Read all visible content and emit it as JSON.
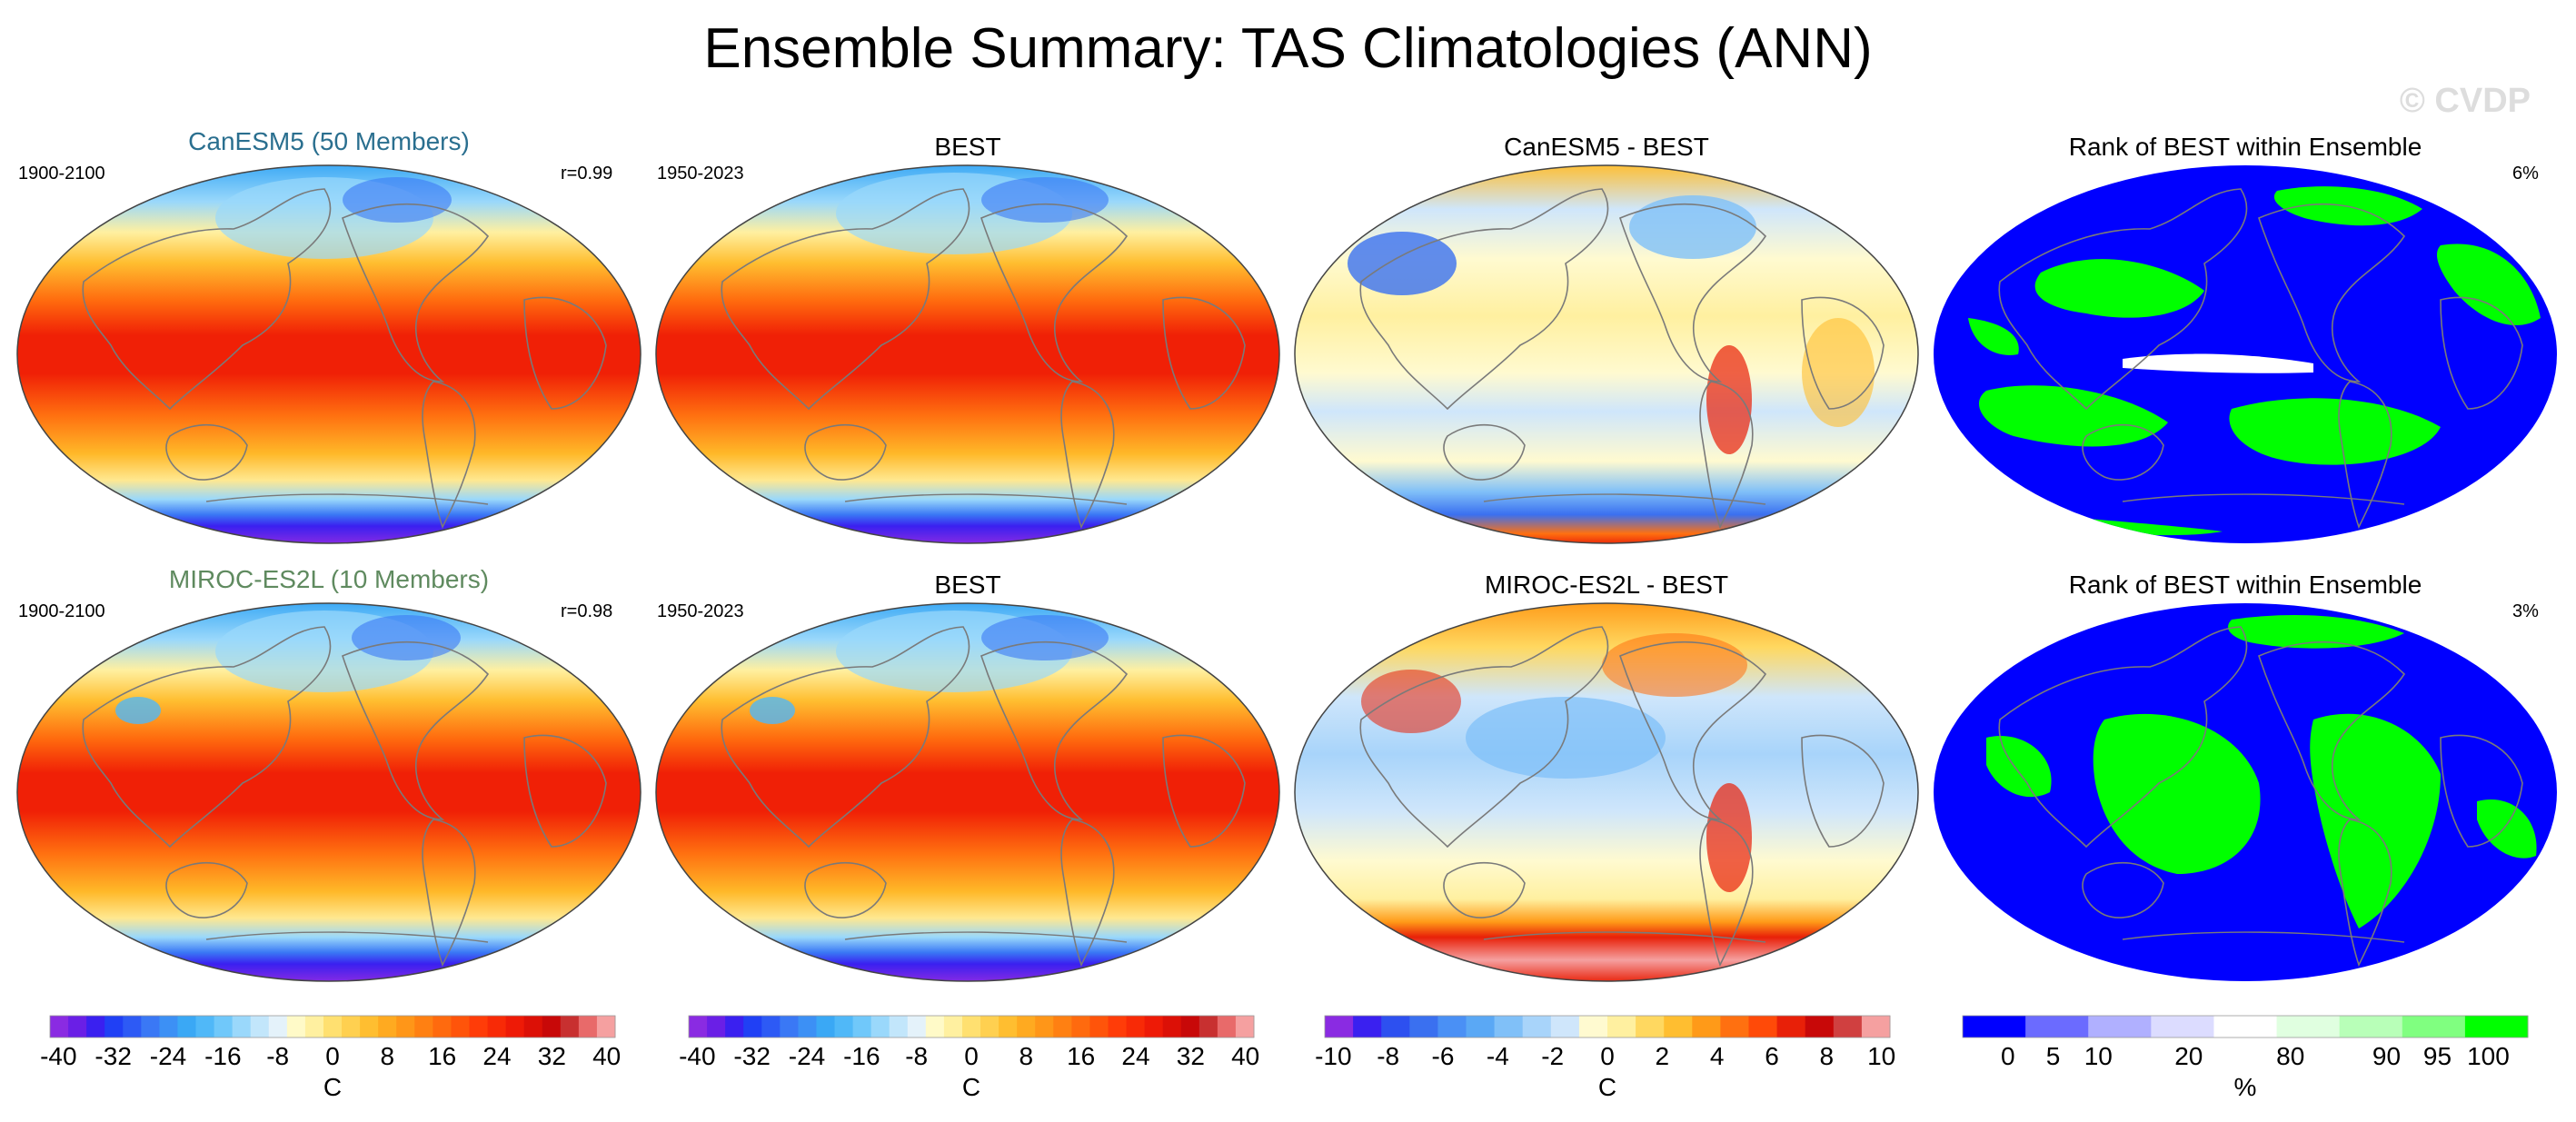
{
  "title": "Ensemble Summary: TAS Climatologies (ANN)",
  "watermark": "© CVDP",
  "rows": [
    {
      "model_title": "CanESM5 (50 Members)",
      "model_title_color": "#2a6f8f",
      "model_period": "1900-2100",
      "correlation": "r=0.99",
      "obs_title": "BEST",
      "obs_period": "1950-2023",
      "diff_title": "CanESM5 - BEST",
      "rank_title": "Rank of BEST within Ensemble",
      "rank_pct": "6%"
    },
    {
      "model_title": "MIROC-ES2L (10 Members)",
      "model_title_color": "#5f8a5f",
      "model_period": "1900-2100",
      "correlation": "r=0.98",
      "obs_title": "BEST",
      "obs_period": "1950-2023",
      "diff_title": "MIROC-ES2L - BEST",
      "rank_title": "Rank of BEST within Ensemble",
      "rank_pct": "3%"
    }
  ],
  "colorbars": [
    {
      "unit": "C",
      "tick_labels": [
        "-40",
        "-32",
        "-24",
        "-16",
        "-8",
        "0",
        "8",
        "16",
        "24",
        "32",
        "40"
      ],
      "colors": [
        "#8a2be2",
        "#6a1fe6",
        "#3a20f0",
        "#2040f5",
        "#2d5af5",
        "#3a78f5",
        "#3c90f5",
        "#3aa8f5",
        "#50b8f8",
        "#70c8fa",
        "#9ad8fb",
        "#c2e6fb",
        "#e4f2fa",
        "#fffac8",
        "#fff0a0",
        "#ffe070",
        "#ffd050",
        "#ffbe30",
        "#ffaa20",
        "#ff9618",
        "#ff8012",
        "#ff6a0e",
        "#ff540a",
        "#ff3c08",
        "#f82a06",
        "#ee1a06",
        "#dc1006",
        "#c80808",
        "#c83030",
        "#e86a6a",
        "#f5a0a0"
      ]
    },
    {
      "unit": "C",
      "tick_labels": [
        "-40",
        "-32",
        "-24",
        "-16",
        "-8",
        "0",
        "8",
        "16",
        "24",
        "32",
        "40"
      ],
      "colors": [
        "#8a2be2",
        "#6a1fe6",
        "#3a20f0",
        "#2040f5",
        "#2d5af5",
        "#3a78f5",
        "#3c90f5",
        "#3aa8f5",
        "#50b8f8",
        "#70c8fa",
        "#9ad8fb",
        "#c2e6fb",
        "#e4f2fa",
        "#fffac8",
        "#fff0a0",
        "#ffe070",
        "#ffd050",
        "#ffbe30",
        "#ffaa20",
        "#ff9618",
        "#ff8012",
        "#ff6a0e",
        "#ff540a",
        "#ff3c08",
        "#f82a06",
        "#ee1a06",
        "#dc1006",
        "#c80808",
        "#c83030",
        "#e86a6a",
        "#f5a0a0"
      ]
    },
    {
      "unit": "C",
      "tick_labels": [
        "-10",
        "-8",
        "-6",
        "-4",
        "-2",
        "0",
        "2",
        "4",
        "6",
        "8",
        "10"
      ],
      "colors": [
        "#8a2be2",
        "#3a20f0",
        "#2d50f0",
        "#3a70f0",
        "#4a90f5",
        "#5aa8f5",
        "#80c0f8",
        "#a8d4fa",
        "#cfe6fb",
        "#fffad0",
        "#fff0a0",
        "#ffd860",
        "#ffbe30",
        "#ff9a18",
        "#ff7010",
        "#ff4a08",
        "#e82008",
        "#c80808",
        "#d04040",
        "#f5a0a0"
      ]
    },
    {
      "unit": "%",
      "tick_labels": [
        "0",
        "5",
        "10",
        "20",
        "80",
        "90",
        "95",
        "100"
      ],
      "colors": [
        "#0000ff",
        "#6b6bff",
        "#b0b0ff",
        "#dcdcff",
        "#ffffff",
        "#e0ffe0",
        "#b8ffb8",
        "#80ff80",
        "#00ff00"
      ]
    }
  ],
  "chart_data": [
    {
      "type": "heatmap",
      "title": "CanESM5 (50 Members)",
      "subtitle": "1900-2100",
      "annotation": "r=0.99",
      "variable": "TAS annual climatology",
      "unit": "C",
      "colorbar_range": [
        -40,
        40
      ],
      "colorbar_ticks": [
        -40,
        -32,
        -24,
        -16,
        -8,
        0,
        8,
        16,
        24,
        32,
        40
      ]
    },
    {
      "type": "heatmap",
      "title": "BEST",
      "subtitle": "1950-2023",
      "variable": "TAS annual climatology",
      "unit": "C",
      "colorbar_range": [
        -40,
        40
      ],
      "colorbar_ticks": [
        -40,
        -32,
        -24,
        -16,
        -8,
        0,
        8,
        16,
        24,
        32,
        40
      ]
    },
    {
      "type": "heatmap",
      "title": "CanESM5 - BEST",
      "unit": "C",
      "colorbar_range": [
        -10,
        10
      ],
      "colorbar_ticks": [
        -10,
        -8,
        -6,
        -4,
        -2,
        0,
        2,
        4,
        6,
        8,
        10
      ]
    },
    {
      "type": "heatmap",
      "title": "Rank of BEST within Ensemble",
      "annotation": "6%",
      "unit": "%",
      "colorbar_ticks": [
        0,
        5,
        10,
        20,
        80,
        90,
        95,
        100
      ]
    },
    {
      "type": "heatmap",
      "title": "MIROC-ES2L (10 Members)",
      "subtitle": "1900-2100",
      "annotation": "r=0.98",
      "variable": "TAS annual climatology",
      "unit": "C",
      "colorbar_range": [
        -40,
        40
      ],
      "colorbar_ticks": [
        -40,
        -32,
        -24,
        -16,
        -8,
        0,
        8,
        16,
        24,
        32,
        40
      ]
    },
    {
      "type": "heatmap",
      "title": "BEST",
      "subtitle": "1950-2023",
      "variable": "TAS annual climatology",
      "unit": "C",
      "colorbar_range": [
        -40,
        40
      ],
      "colorbar_ticks": [
        -40,
        -32,
        -24,
        -16,
        -8,
        0,
        8,
        16,
        24,
        32,
        40
      ]
    },
    {
      "type": "heatmap",
      "title": "MIROC-ES2L - BEST",
      "unit": "C",
      "colorbar_range": [
        -10,
        10
      ],
      "colorbar_ticks": [
        -10,
        -8,
        -6,
        -4,
        -2,
        0,
        2,
        4,
        6,
        8,
        10
      ]
    },
    {
      "type": "heatmap",
      "title": "Rank of BEST within Ensemble",
      "annotation": "3%",
      "unit": "%",
      "colorbar_ticks": [
        0,
        5,
        10,
        20,
        80,
        90,
        95,
        100
      ]
    }
  ]
}
